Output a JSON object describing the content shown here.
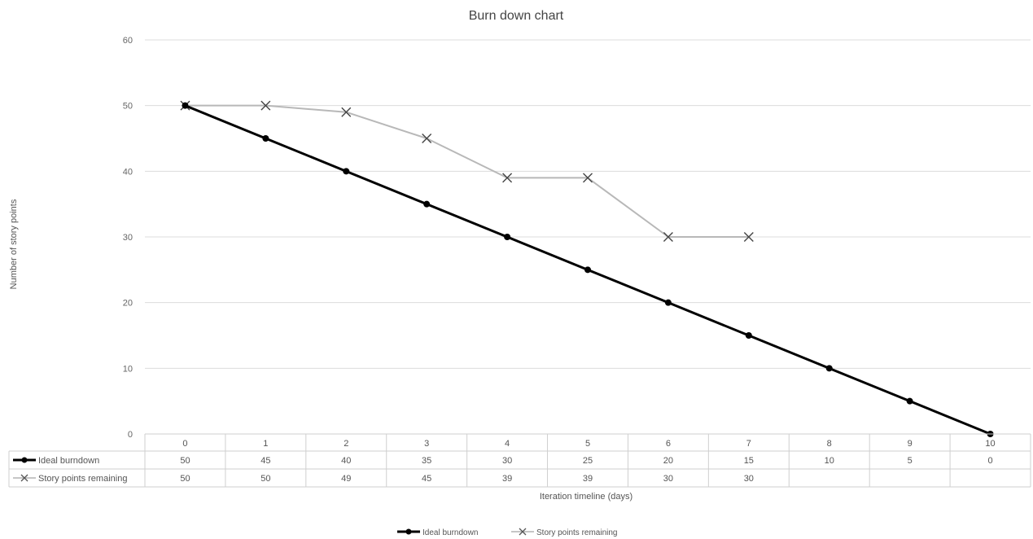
{
  "chart_data": {
    "type": "line",
    "title": "Burn down chart",
    "xlabel": "Iteration timeline (days)",
    "ylabel": "Number of story points",
    "x": [
      0,
      1,
      2,
      3,
      4,
      5,
      6,
      7,
      8,
      9,
      10
    ],
    "y_ticks": [
      0,
      10,
      20,
      30,
      40,
      50,
      60
    ],
    "ylim": [
      0,
      60
    ],
    "grid": true,
    "legend_position": "bottom",
    "series": [
      {
        "name": "Ideal burndown",
        "marker": "circle",
        "color": "#000000",
        "values": [
          50,
          45,
          40,
          35,
          30,
          25,
          20,
          15,
          10,
          5,
          0
        ]
      },
      {
        "name": "Story points remaining",
        "marker": "x",
        "color": "#b3b3b3",
        "values": [
          50,
          50,
          49,
          45,
          39,
          39,
          30,
          30,
          null,
          null,
          null
        ]
      }
    ],
    "data_table": true
  }
}
